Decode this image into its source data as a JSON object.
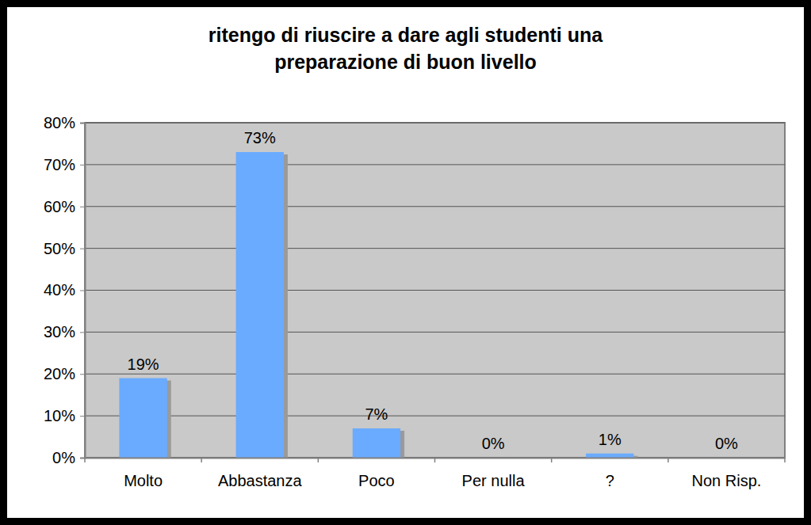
{
  "chart_data": {
    "type": "bar",
    "title": "ritengo di riuscire a dare agli studenti una\npreparazione di buon livello",
    "categories": [
      "Molto",
      "Abbastanza",
      "Poco",
      "Per nulla",
      "?",
      "Non Risp."
    ],
    "values": [
      19,
      73,
      7,
      0,
      1,
      0
    ],
    "value_labels": [
      "19%",
      "73%",
      "7%",
      "0%",
      "1%",
      "0%"
    ],
    "color": "#6aabff",
    "ylim": [
      0,
      80
    ],
    "yticks": [
      {
        "value": 0,
        "label": "0%"
      },
      {
        "value": 10,
        "label": "10%"
      },
      {
        "value": 20,
        "label": "20%"
      },
      {
        "value": 30,
        "label": "30%"
      },
      {
        "value": 40,
        "label": "40%"
      },
      {
        "value": 50,
        "label": "50%"
      },
      {
        "value": 60,
        "label": "60%"
      },
      {
        "value": 70,
        "label": "70%"
      },
      {
        "value": 80,
        "label": "80%"
      }
    ],
    "grid": true,
    "data_labels": true
  }
}
